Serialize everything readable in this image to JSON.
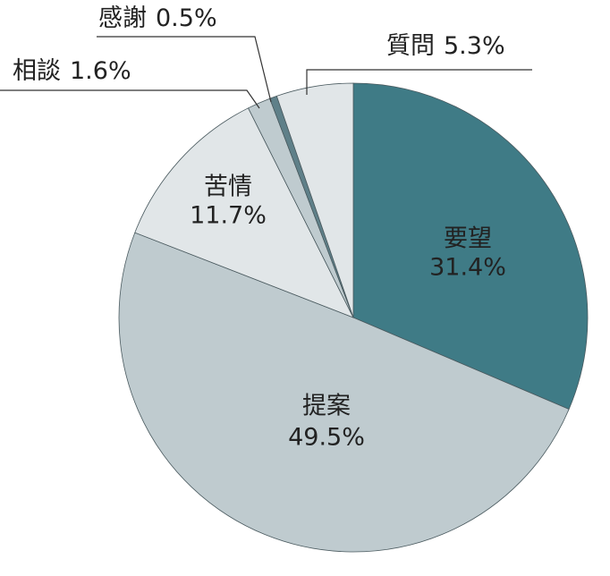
{
  "chart_data": {
    "type": "pie",
    "categories": [
      "要望",
      "提案",
      "苦情",
      "相談",
      "感謝",
      "質問"
    ],
    "values": [
      31.4,
      49.5,
      11.7,
      1.6,
      0.5,
      5.3
    ],
    "value_labels": [
      "31.4%",
      "49.5%",
      "11.7%",
      "1.6%",
      "0.5%",
      "5.3%"
    ],
    "colors": [
      "#3f7b86",
      "#bfcbcf",
      "#e1e6e8",
      "#bfcbcf",
      "#5f8089",
      "#e1e6e8"
    ]
  }
}
